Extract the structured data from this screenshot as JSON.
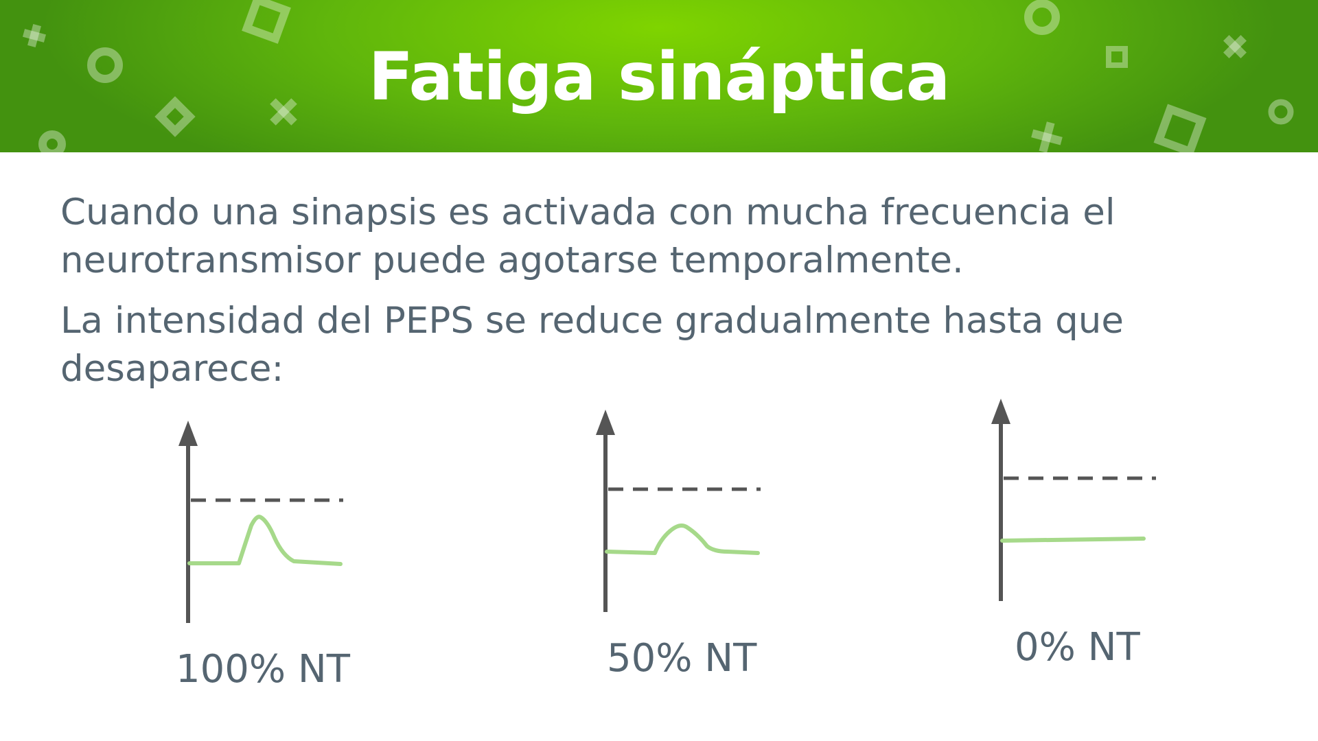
{
  "slide": {
    "title": "Fatiga sináptica",
    "paragraphs": [
      "Cuando una sinapsis es activada con mucha frecuencia el neurotransmisor puede agotarse temporalmente.",
      "La intensidad del PEPS se reduce gradualmente hasta que desaparece:"
    ]
  },
  "colors": {
    "header_green": "#5fb50c",
    "title_text": "#ffffff",
    "body_text": "#556571",
    "axis": "#555555",
    "trace": "#a6d98a"
  },
  "diagrams": [
    {
      "label": "100% NT",
      "nt_fraction": 1.0
    },
    {
      "label": "50% NT",
      "nt_fraction": 0.5
    },
    {
      "label": "0% NT",
      "nt_fraction": 0.0
    }
  ],
  "header_decorations": [
    "plus-icon",
    "ring-icon",
    "square-outline-icon",
    "diamond-icon",
    "x-icon"
  ]
}
